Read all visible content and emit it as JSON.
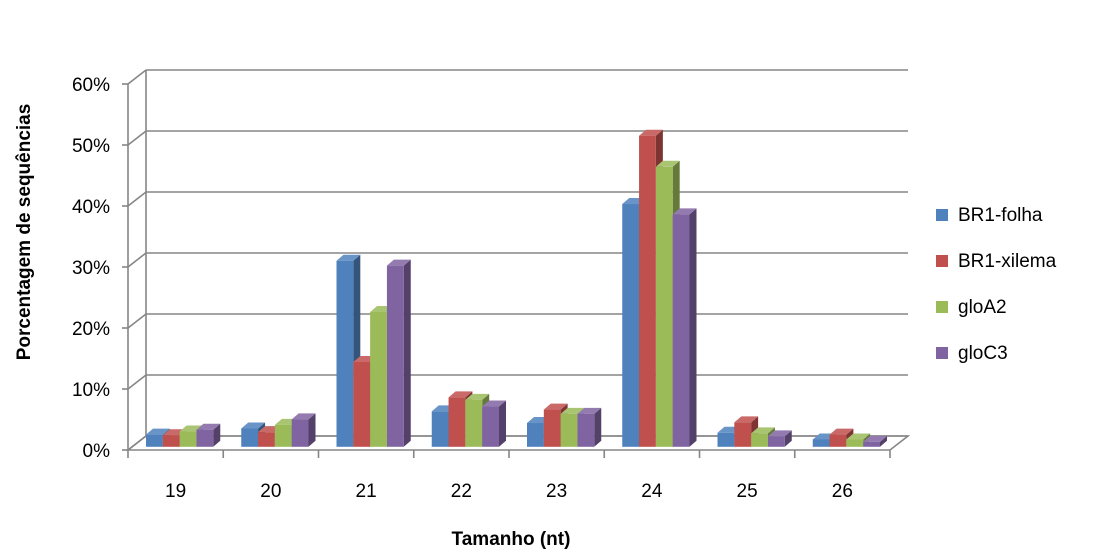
{
  "chart_data": {
    "type": "bar",
    "title": "",
    "xlabel": "Tamanho (nt)",
    "ylabel": "Porcentagem de sequências",
    "categories": [
      "19",
      "20",
      "21",
      "22",
      "23",
      "24",
      "25",
      "26"
    ],
    "y_ticks": [
      "0%",
      "10%",
      "20%",
      "30%",
      "40%",
      "50%",
      "60%"
    ],
    "ylim": [
      0,
      60
    ],
    "grid": true,
    "legend_position": "right",
    "series": [
      {
        "name": "BR1-folha",
        "color": "#4F81BD",
        "values": [
          2.0,
          3.0,
          30.5,
          5.8,
          3.9,
          39.8,
          2.3,
          1.2
        ]
      },
      {
        "name": "BR1-xilema",
        "color": "#C0504D",
        "values": [
          1.9,
          2.4,
          13.9,
          8.1,
          6.1,
          51.0,
          4.0,
          2.0
        ]
      },
      {
        "name": "gloA2",
        "color": "#9BBB59",
        "values": [
          2.5,
          3.6,
          22.1,
          7.7,
          5.4,
          45.9,
          2.2,
          1.2
        ]
      },
      {
        "name": "gloC3",
        "color": "#8064A2",
        "values": [
          2.8,
          4.5,
          29.7,
          6.6,
          5.4,
          38.1,
          1.7,
          0.8
        ]
      }
    ]
  }
}
